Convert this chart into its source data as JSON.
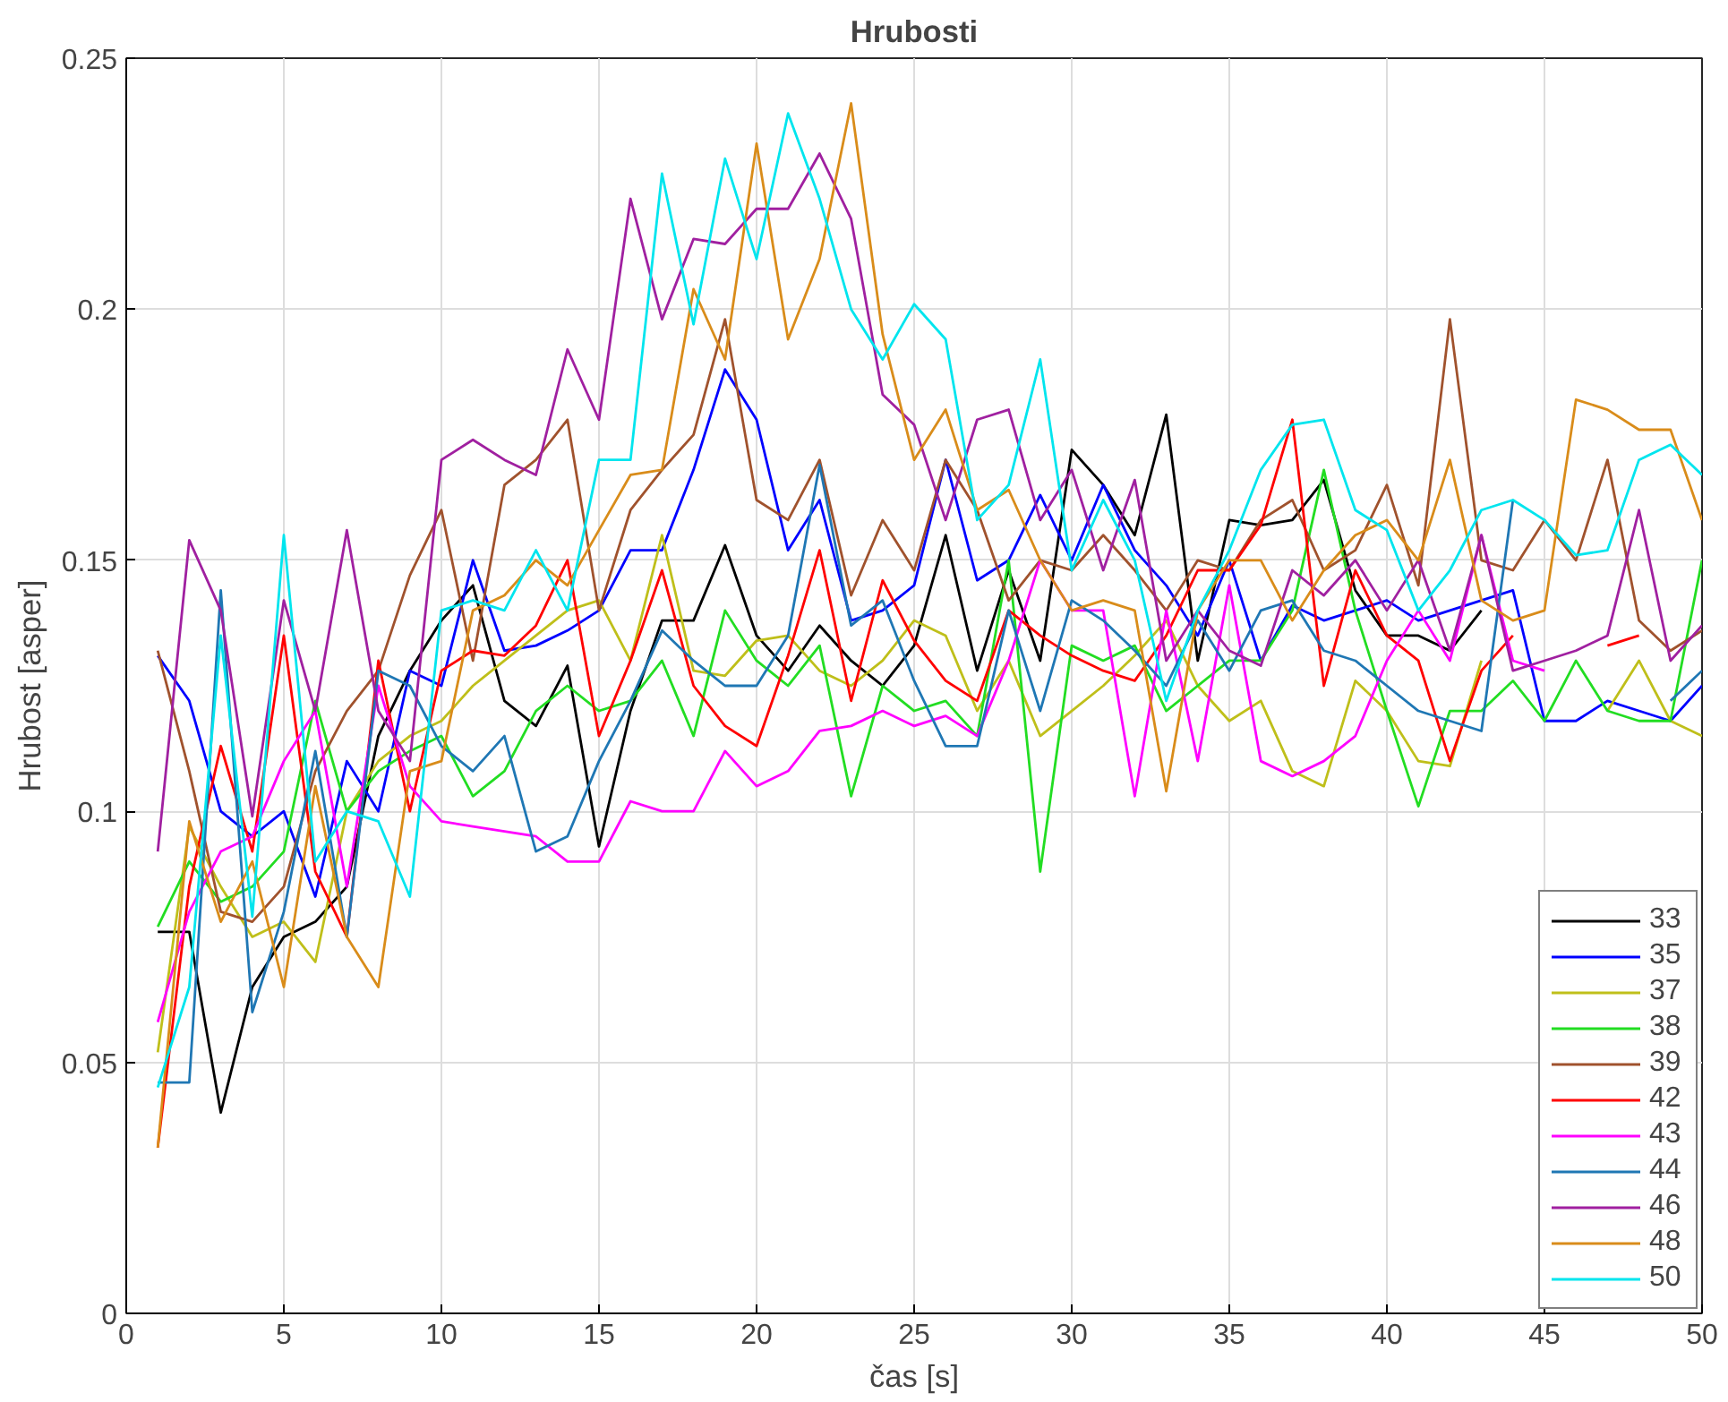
{
  "chart_data": {
    "type": "line",
    "title": "Hrubosti",
    "xlabel": "čas [s]",
    "ylabel": "Hrubost [asper]",
    "x": [
      1,
      2,
      3,
      4,
      5,
      6,
      7,
      8,
      9,
      10,
      11,
      12,
      13,
      14,
      15,
      16,
      17,
      18,
      19,
      20,
      21,
      22,
      23,
      24,
      25,
      26,
      27,
      28,
      29,
      30,
      31,
      32,
      33,
      34,
      35,
      36,
      37,
      38,
      39,
      40,
      41,
      42,
      43,
      44,
      45,
      46,
      47,
      48,
      49,
      50
    ],
    "xlim": [
      0,
      50
    ],
    "xticks": [
      0,
      5,
      10,
      15,
      20,
      25,
      30,
      35,
      40,
      45,
      50
    ],
    "ylim": [
      0,
      0.25
    ],
    "yticks": [
      0,
      0.05,
      0.1,
      0.15,
      0.2,
      0.25
    ],
    "grid": true,
    "legend": "bottom right",
    "line_style": "solid",
    "series": [
      {
        "name": "33",
        "color": "#000000",
        "values": [
          0.076,
          0.076,
          0.04,
          0.065,
          0.075,
          0.078,
          0.085,
          0.115,
          0.128,
          0.138,
          0.145,
          0.122,
          0.117,
          0.129,
          0.093,
          0.12,
          0.138,
          0.138,
          0.153,
          0.135,
          0.128,
          0.137,
          0.13,
          0.125,
          0.133,
          0.155,
          0.128,
          0.148,
          0.13,
          0.172,
          0.165,
          0.155,
          0.179,
          0.13,
          0.158,
          0.157,
          0.158,
          0.166,
          0.144,
          0.135,
          0.135,
          0.132,
          0.14,
          null,
          null,
          null,
          null,
          null,
          null,
          null
        ]
      },
      {
        "name": "35",
        "color": "#0000ff",
        "values": [
          0.131,
          0.122,
          0.1,
          0.095,
          0.1,
          0.083,
          0.11,
          0.1,
          0.128,
          0.125,
          0.15,
          0.132,
          0.133,
          0.136,
          0.14,
          0.152,
          0.152,
          0.168,
          0.188,
          0.178,
          0.152,
          0.162,
          0.138,
          0.14,
          0.145,
          0.17,
          0.146,
          0.15,
          0.163,
          0.15,
          0.165,
          0.152,
          0.145,
          0.135,
          0.15,
          0.13,
          0.141,
          0.138,
          0.14,
          0.142,
          0.138,
          0.14,
          0.142,
          0.144,
          0.118,
          0.118,
          0.122,
          0.12,
          0.118,
          0.125
        ]
      },
      {
        "name": "37",
        "color": "#bfbf1a",
        "values": [
          0.052,
          0.097,
          0.085,
          0.075,
          0.078,
          0.07,
          0.1,
          0.11,
          0.115,
          0.118,
          0.125,
          0.13,
          0.135,
          0.14,
          0.142,
          0.13,
          0.155,
          0.128,
          0.127,
          0.134,
          0.135,
          0.128,
          0.125,
          0.13,
          0.138,
          0.135,
          0.12,
          0.13,
          0.115,
          0.12,
          0.125,
          0.131,
          0.138,
          0.125,
          0.118,
          0.122,
          0.108,
          0.105,
          0.126,
          0.12,
          0.11,
          0.109,
          0.13,
          null,
          null,
          null,
          0.12,
          0.13,
          0.118,
          0.115
        ]
      },
      {
        "name": "38",
        "color": "#22dd22",
        "values": [
          0.077,
          0.09,
          0.082,
          0.085,
          0.092,
          0.122,
          0.1,
          0.108,
          0.112,
          0.115,
          0.103,
          0.108,
          0.12,
          0.125,
          0.12,
          0.122,
          0.13,
          0.115,
          0.14,
          0.13,
          0.125,
          0.133,
          0.103,
          0.125,
          0.12,
          0.122,
          0.115,
          0.15,
          0.088,
          0.133,
          0.13,
          0.133,
          0.12,
          0.125,
          0.13,
          0.13,
          0.14,
          0.168,
          0.14,
          0.12,
          0.101,
          0.12,
          0.12,
          0.126,
          0.118,
          0.13,
          0.12,
          0.118,
          0.118,
          0.15
        ]
      },
      {
        "name": "39",
        "color": "#a0522d",
        "values": [
          0.132,
          0.108,
          0.08,
          0.078,
          0.085,
          0.108,
          0.12,
          0.128,
          0.147,
          0.16,
          0.13,
          0.165,
          0.17,
          0.178,
          0.14,
          0.16,
          0.168,
          0.175,
          0.198,
          0.162,
          0.158,
          0.17,
          0.143,
          0.158,
          0.148,
          0.17,
          0.16,
          0.142,
          0.15,
          0.148,
          0.155,
          0.148,
          0.14,
          0.15,
          0.148,
          0.158,
          0.162,
          0.148,
          0.152,
          0.165,
          0.145,
          0.198,
          0.15,
          0.148,
          0.158,
          0.15,
          0.17,
          0.138,
          0.132,
          0.136
        ]
      },
      {
        "name": "42",
        "color": "#ff0000",
        "values": [
          0.033,
          0.085,
          0.113,
          0.092,
          0.135,
          0.088,
          0.075,
          0.13,
          0.1,
          0.128,
          0.132,
          0.131,
          0.137,
          0.15,
          0.115,
          0.13,
          0.148,
          0.125,
          0.117,
          0.113,
          0.131,
          0.152,
          0.122,
          0.146,
          0.134,
          0.126,
          0.122,
          0.14,
          0.135,
          0.131,
          0.128,
          0.126,
          0.135,
          0.148,
          0.148,
          0.157,
          0.178,
          0.125,
          0.148,
          0.135,
          0.13,
          0.11,
          0.128,
          0.135,
          null,
          null,
          0.133,
          0.135,
          null,
          null
        ]
      },
      {
        "name": "43",
        "color": "#ff00ff",
        "values": [
          0.058,
          0.08,
          0.092,
          0.095,
          0.11,
          0.12,
          0.085,
          0.125,
          0.105,
          0.098,
          0.097,
          0.096,
          0.095,
          0.09,
          0.09,
          0.102,
          0.1,
          0.1,
          0.112,
          0.105,
          0.108,
          0.116,
          0.117,
          0.12,
          0.117,
          0.119,
          0.115,
          0.13,
          0.15,
          0.14,
          0.14,
          0.103,
          0.14,
          0.11,
          0.145,
          0.11,
          0.107,
          0.11,
          0.115,
          0.13,
          0.14,
          0.13,
          0.155,
          0.13,
          0.128,
          null,
          null,
          null,
          null,
          null
        ]
      },
      {
        "name": "44",
        "color": "#1f77b4",
        "values": [
          0.046,
          0.046,
          0.144,
          0.06,
          0.08,
          0.112,
          0.075,
          0.128,
          0.125,
          0.113,
          0.108,
          0.115,
          0.092,
          0.095,
          0.11,
          0.122,
          0.136,
          0.13,
          0.125,
          0.125,
          0.135,
          0.169,
          0.137,
          0.142,
          0.126,
          0.113,
          0.113,
          0.14,
          0.12,
          0.142,
          0.138,
          0.132,
          0.125,
          0.138,
          0.128,
          0.14,
          0.142,
          0.132,
          0.13,
          0.125,
          0.12,
          0.118,
          0.116,
          0.162,
          null,
          null,
          null,
          null,
          0.122,
          0.128
        ]
      },
      {
        "name": "46",
        "color": "#a020a0",
        "values": [
          0.092,
          0.154,
          0.14,
          0.099,
          0.142,
          0.12,
          0.156,
          0.12,
          0.11,
          0.17,
          0.174,
          0.17,
          0.167,
          0.192,
          0.178,
          0.222,
          0.198,
          0.214,
          0.213,
          0.22,
          0.22,
          0.231,
          0.218,
          0.183,
          0.177,
          0.158,
          0.178,
          0.18,
          0.158,
          0.168,
          0.148,
          0.166,
          0.13,
          0.14,
          0.132,
          0.129,
          0.148,
          0.143,
          0.15,
          0.14,
          0.15,
          0.132,
          0.155,
          0.128,
          0.13,
          0.132,
          0.135,
          0.16,
          0.13,
          0.137
        ]
      },
      {
        "name": "48",
        "color": "#d98c1a",
        "values": [
          0.033,
          0.098,
          0.078,
          0.09,
          0.065,
          0.105,
          0.075,
          0.065,
          0.108,
          0.11,
          0.14,
          0.143,
          0.15,
          0.145,
          0.156,
          0.167,
          0.168,
          0.204,
          0.19,
          0.233,
          0.194,
          0.21,
          0.241,
          0.195,
          0.17,
          0.18,
          0.16,
          0.164,
          0.15,
          0.14,
          0.142,
          0.14,
          0.104,
          0.14,
          0.15,
          0.15,
          0.138,
          0.148,
          0.155,
          0.158,
          0.15,
          0.17,
          0.142,
          0.138,
          0.14,
          0.182,
          0.18,
          0.176,
          0.176,
          0.158
        ]
      },
      {
        "name": "50",
        "color": "#00e5ee",
        "values": [
          0.045,
          0.065,
          0.135,
          0.079,
          0.155,
          0.09,
          0.1,
          0.098,
          0.083,
          0.14,
          0.142,
          0.14,
          0.152,
          0.14,
          0.17,
          0.17,
          0.227,
          0.197,
          0.23,
          0.21,
          0.239,
          0.222,
          0.2,
          0.19,
          0.201,
          0.194,
          0.158,
          0.165,
          0.19,
          0.148,
          0.162,
          0.15,
          0.122,
          0.14,
          0.152,
          0.168,
          0.177,
          0.178,
          0.16,
          0.156,
          0.14,
          0.148,
          0.16,
          0.162,
          0.158,
          0.151,
          0.152,
          0.17,
          0.173,
          0.167
        ]
      }
    ]
  }
}
